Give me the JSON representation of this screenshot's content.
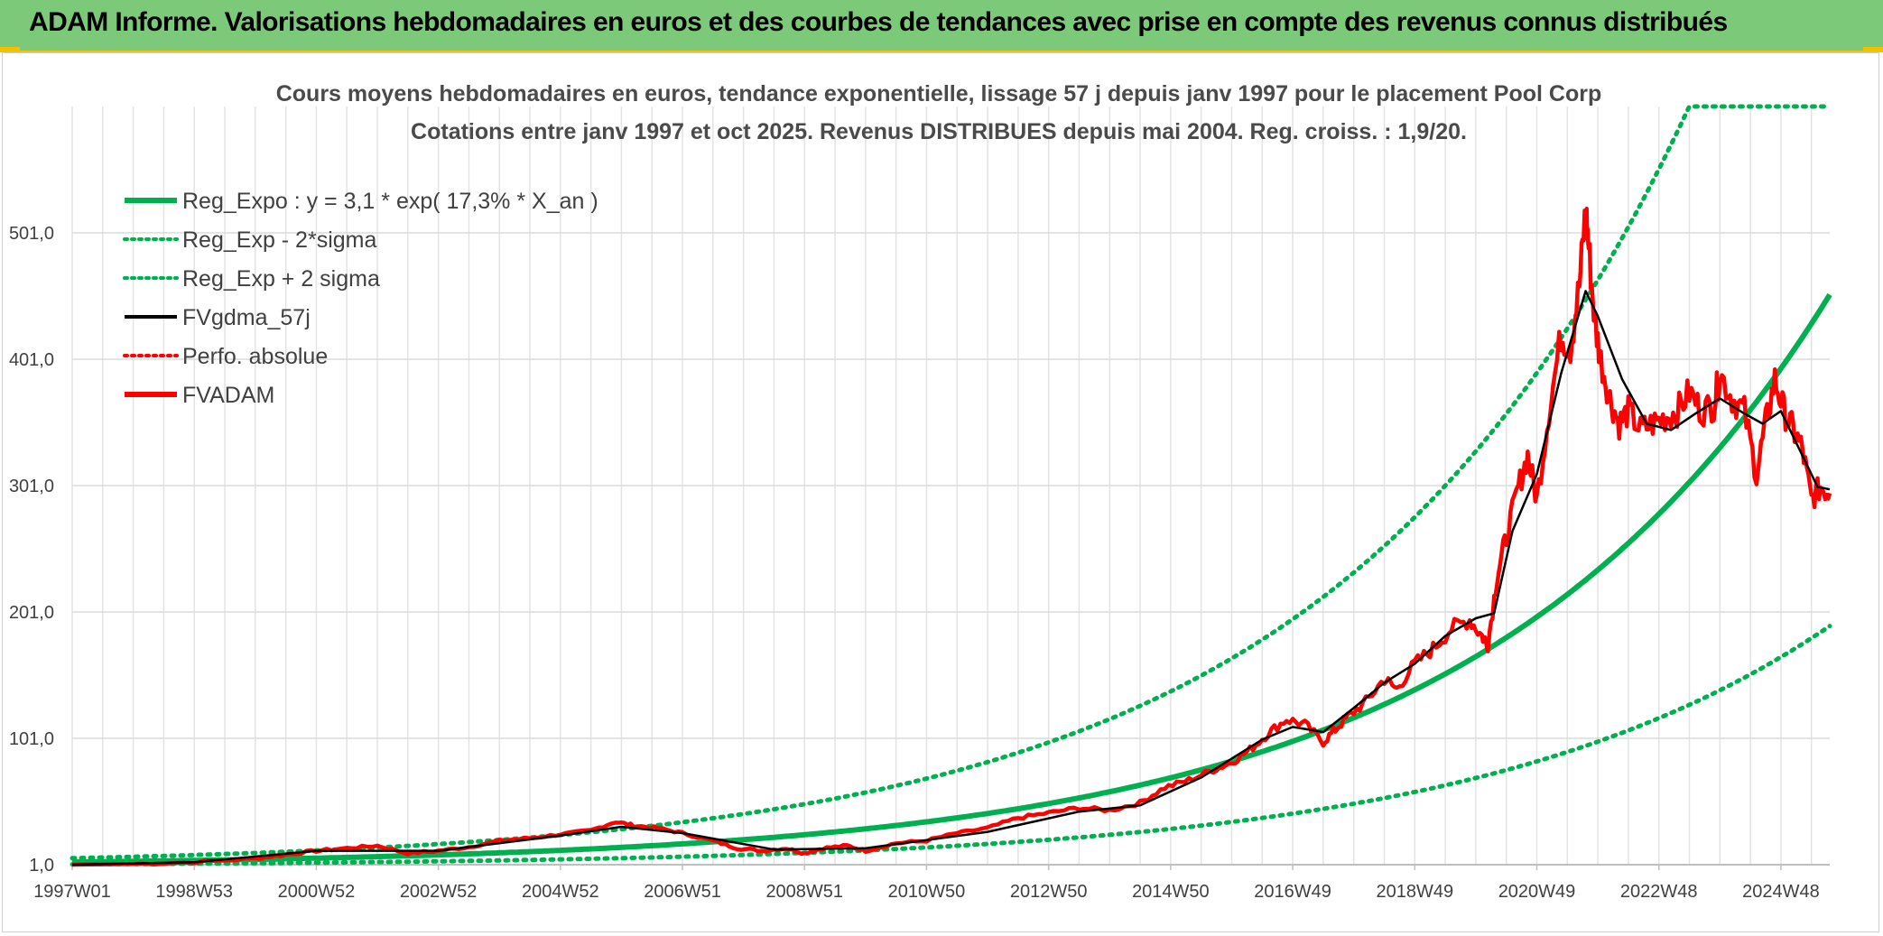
{
  "header": {
    "title": "ADAM Informe. Valorisations hebdomadaires en euros et des courbes de tendances avec prise en compte des revenus connus distribués"
  },
  "chart_data": {
    "type": "line",
    "title": "Cours moyens hebdomadaires en euros, tendance exponentielle, lissage 57 j depuis janv 1997 pour le placement Pool Corp",
    "subtitle": "Cotations entre janv 1997 et oct 2025. Revenus DISTRIBUES depuis mai 2004. Reg. croiss. : 1,9/20.",
    "xlabel": "",
    "ylabel": "",
    "x_tick_labels": [
      "1997W01",
      "1998W53",
      "2000W52",
      "2002W52",
      "2004W52",
      "2006W51",
      "2008W51",
      "2010W50",
      "2012W50",
      "2014W50",
      "2016W49",
      "2018W49",
      "2020W49",
      "2022W48",
      "2024W48"
    ],
    "x_tick_years": [
      1997.0,
      1999.0,
      2001.0,
      2003.0,
      2005.0,
      2007.0,
      2009.0,
      2011.0,
      2013.0,
      2015.0,
      2017.0,
      2019.0,
      2021.0,
      2023.0,
      2025.0
    ],
    "xlim": [
      1997.0,
      2025.8
    ],
    "y_tick_labels": [
      "1,0",
      "101,0",
      "201,0",
      "301,0",
      "401,0",
      "501,0"
    ],
    "y_ticks": [
      1,
      101,
      201,
      301,
      401,
      501
    ],
    "ylim": [
      1,
      601
    ],
    "grid": true,
    "legend_position": "top-left",
    "legend": [
      {
        "name": "Reg_Expo : y = 3,1 * exp( 17,3% *  X_an )",
        "color": "#00b050",
        "style": "solid-thick"
      },
      {
        "name": "Reg_Exp - 2*sigma",
        "color": "#00b050",
        "style": "dotted"
      },
      {
        "name": "Reg_Exp + 2 sigma",
        "color": "#00b050",
        "style": "dotted"
      },
      {
        "name": "FVgdma_57j",
        "color": "#000000",
        "style": "solid"
      },
      {
        "name": "Perfo. absolue",
        "color": "#ff0000",
        "style": "dotted"
      },
      {
        "name": "FVADAM",
        "color": "#ff0000",
        "style": "solid-thick"
      }
    ],
    "regression": {
      "a": 3.1,
      "b": 0.173,
      "t0": 1997.0,
      "lower_factor": 0.42,
      "upper_factor": 1.98,
      "cap": 601
    },
    "series_fvadam": {
      "name": "FVADAM",
      "x": [
        1997.0,
        1998.0,
        1999.0,
        2000.0,
        2000.5,
        2001.0,
        2001.5,
        2002.0,
        2002.5,
        2003.0,
        2003.5,
        2004.0,
        2004.5,
        2005.0,
        2005.5,
        2005.9,
        2006.2,
        2006.6,
        2007.0,
        2007.5,
        2007.9,
        2008.3,
        2008.7,
        2009.0,
        2009.3,
        2009.7,
        2010.0,
        2010.5,
        2011.0,
        2011.5,
        2012.0,
        2012.5,
        2013.0,
        2013.5,
        2014.0,
        2014.5,
        2014.9,
        2015.3,
        2015.7,
        2016.0,
        2016.3,
        2016.6,
        2016.9,
        2017.2,
        2017.5,
        2017.7,
        2017.9,
        2018.2,
        2018.5,
        2018.7,
        2019.0,
        2019.3,
        2019.6,
        2019.9,
        2020.1,
        2020.2,
        2020.35,
        2020.5,
        2020.7,
        2020.85,
        2021.0,
        2021.2,
        2021.4,
        2021.55,
        2021.7,
        2021.8,
        2021.85,
        2021.95,
        2022.05,
        2022.2,
        2022.35,
        2022.5,
        2022.7,
        2022.9,
        2023.1,
        2023.3,
        2023.5,
        2023.7,
        2023.9,
        2024.0,
        2024.2,
        2024.4,
        2024.6,
        2024.75,
        2024.9,
        2025.05,
        2025.2,
        2025.35,
        2025.5,
        2025.65,
        2025.8
      ],
      "values": [
        1,
        1.5,
        3,
        6,
        9,
        12,
        14,
        16,
        10,
        12,
        15,
        20,
        22,
        25,
        28,
        35,
        32,
        30,
        26,
        20,
        14,
        12,
        14,
        10,
        14,
        16,
        12,
        18,
        20,
        26,
        30,
        38,
        42,
        46,
        44,
        50,
        62,
        68,
        76,
        82,
        92,
        105,
        116,
        112,
        98,
        108,
        118,
        130,
        148,
        140,
        160,
        172,
        188,
        195,
        182,
        176,
        230,
        260,
        300,
        325,
        290,
        360,
        420,
        410,
        460,
        520,
        490,
        430,
        400,
        370,
        350,
        360,
        345,
        350,
        355,
        360,
        375,
        360,
        365,
        390,
        370,
        360,
        310,
        350,
        385,
        360,
        345,
        330,
        290,
        300,
        295
      ]
    },
    "series_fvgdma_57j": {
      "name": "FVgdma_57j",
      "x": [
        1997.0,
        1999.0,
        2001.0,
        2003.0,
        2005.0,
        2006.0,
        2007.0,
        2008.5,
        2010.0,
        2012.0,
        2013.5,
        2014.5,
        2015.5,
        2016.5,
        2017.0,
        2017.5,
        2018.0,
        2018.5,
        2019.0,
        2019.5,
        2020.0,
        2020.3,
        2020.6,
        2021.0,
        2021.4,
        2021.8,
        2022.0,
        2022.4,
        2022.8,
        2023.2,
        2023.6,
        2024.0,
        2024.4,
        2024.7,
        2025.0,
        2025.3,
        2025.6,
        2025.8
      ],
      "values": [
        1,
        3,
        12,
        12,
        24,
        31,
        26,
        13,
        14,
        27,
        43,
        48,
        70,
        100,
        110,
        106,
        125,
        145,
        160,
        182,
        196,
        200,
        265,
        310,
        390,
        455,
        435,
        385,
        350,
        345,
        358,
        370,
        358,
        350,
        360,
        330,
        300,
        298
      ]
    }
  }
}
